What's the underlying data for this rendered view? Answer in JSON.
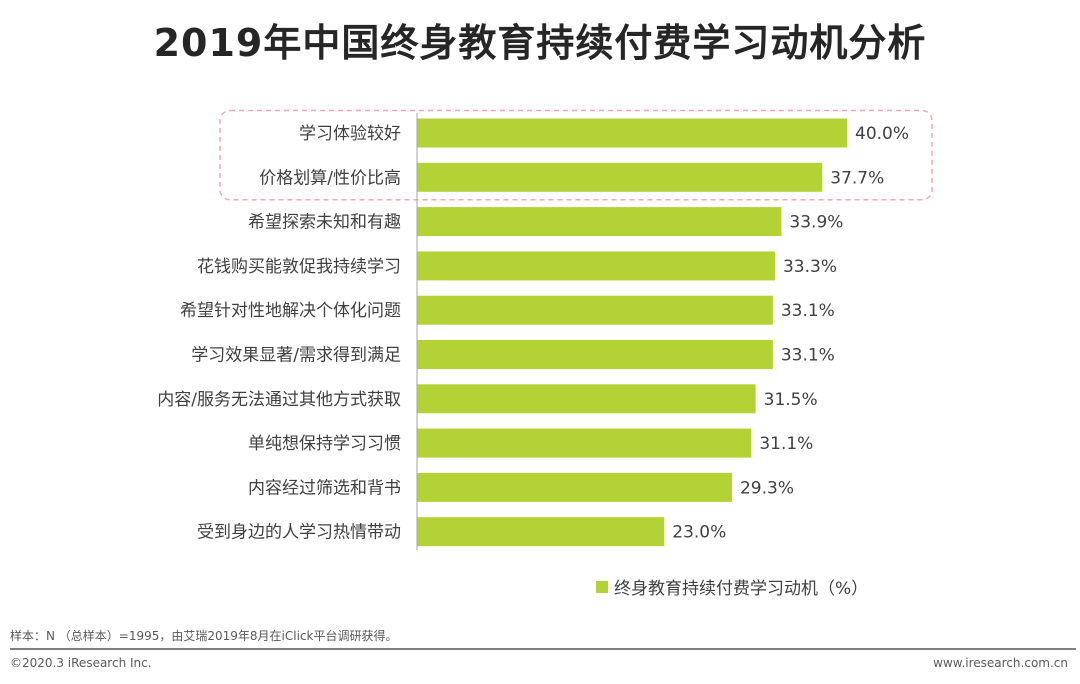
{
  "title": "2019年中国终身教育持续付费学习动机分析",
  "chart_data": {
    "type": "bar",
    "orientation": "horizontal",
    "title": "2019年中国终身教育持续付费学习动机分析",
    "categories": [
      "学习体验较好",
      "价格划算/性价比高",
      "希望探索未知和有趣",
      "花钱购买能敦促我持续学习",
      "希望针对性地解决个体化问题",
      "学习效果显著/需求得到满足",
      "内容/服务无法通过其他方式获取",
      "单纯想保持学习习惯",
      "内容经过筛选和背书",
      "受到身边的人学习热情带动"
    ],
    "values": [
      40.0,
      37.7,
      33.9,
      33.3,
      33.1,
      33.1,
      31.5,
      31.1,
      29.3,
      23.0
    ],
    "value_labels": [
      "40.0%",
      "37.7%",
      "33.9%",
      "33.3%",
      "33.1%",
      "33.1%",
      "31.5%",
      "31.1%",
      "29.3%",
      "23.0%"
    ],
    "xlim": [
      0,
      40
    ],
    "highlighted_top_n": 2,
    "series_name": "终身教育持续付费学习动机（%）",
    "bar_color": "#b2d235",
    "highlight_color": "#f4a6b4"
  },
  "legend": {
    "label": "终身教育持续付费学习动机（%）"
  },
  "note": "样本：N （总样本）=1995，由艾瑞2019年8月在iClick平台调研获得。",
  "footer": {
    "copyright": "©2020.3 iResearch Inc.",
    "website": "www.iresearch.com.cn"
  }
}
